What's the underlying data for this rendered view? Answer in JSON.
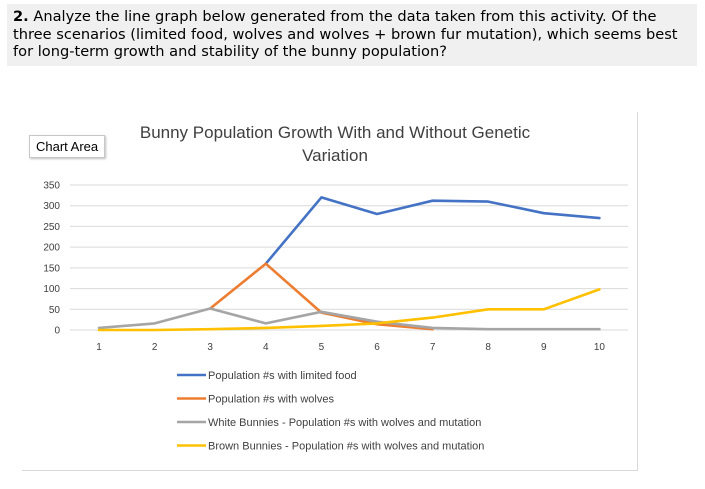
{
  "question": {
    "number": "2.",
    "text": "Analyze the line graph below generated from the data taken from this activity. Of the three scenarios (limited food, wolves and wolves + brown fur mutation), which seems best for long-term growth and stability of the bunny population?"
  },
  "chart_area_label": "Chart Area",
  "chart_data": {
    "type": "line",
    "title": "Bunny Population Growth With and Without Genetic Variation",
    "x": [
      1,
      2,
      3,
      4,
      5,
      6,
      7,
      8,
      9,
      10
    ],
    "ylim": [
      0,
      350
    ],
    "yticks": [
      0,
      50,
      100,
      150,
      200,
      250,
      300,
      350
    ],
    "grid": true,
    "legend_position": "bottom",
    "series": [
      {
        "name": "Population #s with limited food",
        "color": "#4472c4",
        "values": [
          null,
          null,
          null,
          160,
          320,
          280,
          312,
          310,
          282,
          270
        ]
      },
      {
        "name": "Population #s with wolves",
        "color": "#ed7d31",
        "values": [
          null,
          null,
          52,
          160,
          42,
          14,
          2,
          null,
          null,
          null
        ]
      },
      {
        "name": "White Bunnies - Population #s with wolves and mutation",
        "color": "#a5a5a5",
        "values": [
          5,
          16,
          52,
          16,
          44,
          20,
          5,
          2,
          2,
          2
        ]
      },
      {
        "name": "Brown Bunnies - Population #s with wolves and mutation",
        "color": "#ffc000",
        "values": [
          0,
          0,
          2,
          5,
          10,
          16,
          30,
          50,
          50,
          98
        ]
      }
    ]
  }
}
